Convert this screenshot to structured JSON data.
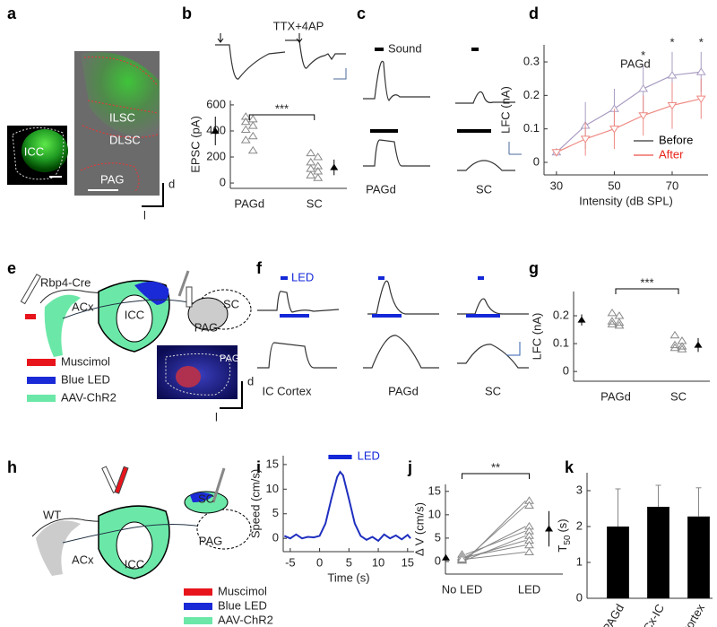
{
  "panel_labels": [
    "a",
    "b",
    "c",
    "d",
    "e",
    "f",
    "g",
    "h",
    "i",
    "j",
    "k"
  ],
  "panel_a": {
    "labels": [
      "ICC",
      "ILSC",
      "DLSC",
      "PAG"
    ],
    "axes": [
      "d",
      "l"
    ]
  },
  "panel_b": {
    "title": "TTX+4AP"
  },
  "panel_c": {
    "stimulus": "Sound",
    "regions": [
      "PAGd",
      "SC"
    ]
  },
  "panel_e": {
    "mouse": "Rbp4-Cre",
    "regions": [
      "ACx",
      "ICC",
      "SC",
      "PAG"
    ],
    "legend": [
      "Muscimol",
      "Blue LED",
      "AAV-ChR2"
    ],
    "legend_colors": [
      "#e8141b",
      "#1a2ad6",
      "#6be8a8"
    ],
    "inset": "PAG",
    "axes": [
      "d",
      "l"
    ]
  },
  "panel_f": {
    "stimulus": "LED",
    "regions": [
      "IC Cortex",
      "PAGd",
      "SC"
    ]
  },
  "panel_h": {
    "mouse": "WT",
    "regions": [
      "ACx",
      "ICC",
      "SC",
      "PAG"
    ],
    "legend": [
      "Muscimol",
      "Blue LED",
      "AAV-ChR2"
    ],
    "legend_colors": [
      "#e8141b",
      "#1a2ad6",
      "#6be8a8"
    ]
  },
  "chart_data": [
    {
      "type": "dots",
      "ylabel": "EPSC (pA)",
      "categories": [
        "PAGd",
        "SC"
      ],
      "points": [
        [
          510,
          490,
          470,
          440,
          410,
          360,
          330,
          250
        ],
        [
          230,
          200,
          160,
          130,
          110,
          90,
          60,
          40
        ]
      ],
      "means": [
        400,
        120
      ],
      "errors": [
        110,
        60
      ],
      "ylim": [
        -41,
        634
      ],
      "yticks": [
        0,
        200,
        400,
        600
      ],
      "significance": "***",
      "color": "#888888"
    },
    {
      "type": "line",
      "title": "PAGd",
      "xlabel": "Intensity (dB SPL)",
      "ylabel": "LFC (nA)",
      "x": [
        30,
        40,
        50,
        60,
        70,
        80
      ],
      "series": [
        {
          "name": "Before",
          "color": "#a99cc2",
          "marker": "triangle-up",
          "values": [
            0.03,
            0.11,
            0.16,
            0.22,
            0.26,
            0.27
          ],
          "errors": [
            0.01,
            0.07,
            0.06,
            0.07,
            0.07,
            0.06
          ]
        },
        {
          "name": "After",
          "color": "#ee8a84",
          "marker": "triangle-down",
          "values": [
            0.03,
            0.07,
            0.1,
            0.14,
            0.17,
            0.19
          ],
          "errors": [
            0.01,
            0.05,
            0.06,
            0.06,
            0.07,
            0.06
          ]
        }
      ],
      "legend_colors": [
        "#000000",
        "#e8231a"
      ],
      "legend": "lower right",
      "xlim": [
        25.7,
        82.4
      ],
      "xticks": [
        30,
        50,
        70
      ],
      "ylim": [
        -0.0375,
        0.351
      ],
      "yticks": [
        0,
        0.1,
        0.2,
        0.3
      ],
      "significance": "*",
      "significance_x": [
        60,
        70,
        80
      ]
    },
    {
      "type": "dots",
      "ylabel": "LFC (nA)",
      "categories": [
        "PAGd",
        "SC"
      ],
      "points": [
        [
          0.21,
          0.2,
          0.18,
          0.175,
          0.17,
          0.165
        ],
        [
          0.13,
          0.11,
          0.095,
          0.09,
          0.085,
          0.08
        ]
      ],
      "means": [
        0.185,
        0.095
      ],
      "errors": [
        0.02,
        0.025
      ],
      "ylim": [
        -0.035,
        0.287
      ],
      "yticks": [
        0,
        0.1,
        0.2
      ],
      "significance": "***",
      "color": "#888888"
    },
    {
      "type": "line",
      "xlabel": "Time (s)",
      "ylabel": "Speed (cm/s)",
      "x": [
        -6,
        -5,
        -4,
        -3,
        -2,
        -1,
        0,
        1,
        2,
        3,
        3.5,
        4,
        5,
        6,
        7,
        8,
        9,
        10,
        11,
        12,
        13,
        14,
        15,
        15.5
      ],
      "values": [
        0.5,
        0,
        0.8,
        0,
        0.3,
        0.2,
        0.5,
        3,
        8,
        12.5,
        13.5,
        12.8,
        8,
        3,
        0.5,
        -0.3,
        0.3,
        -0.5,
        0.8,
        0,
        0.6,
        -0.2,
        0.7,
        0
      ],
      "color": "#1f2fbf",
      "xlim": [
        -6.2,
        16.1
      ],
      "xticks": [
        -5,
        0,
        5,
        10,
        15
      ],
      "ylim": [
        -2.7,
        16.8
      ],
      "yticks": [
        0,
        5,
        10,
        15
      ],
      "stimulus": "LED",
      "stimulus_on": [
        1.5,
        5.5
      ],
      "stimulus_color": "#1428d8"
    },
    {
      "type": "paired",
      "ylabel": "Δ V (cm/s)",
      "categories": [
        "No LED",
        "LED"
      ],
      "points": [
        [
          0.2,
          0.5,
          1,
          1.5,
          0.3,
          0.8,
          1,
          0.5
        ],
        [
          13,
          12,
          7.5,
          6.5,
          5.5,
          4.5,
          3.5,
          2
        ]
      ],
      "means": [
        0.8,
        7
      ],
      "errors": [
        0.3,
        3.8
      ],
      "ylim": [
        -2.7,
        16.5
      ],
      "yticks": [
        0,
        5,
        10,
        15
      ],
      "significance": "**",
      "color": "#888888"
    },
    {
      "type": "bar",
      "ylabel": "T",
      "ylabel_sub": "50",
      "ylabel_unit": "(s)",
      "categories": [
        "PAGd",
        "ACx-IC",
        "IC Cortex"
      ],
      "values": [
        2.0,
        2.55,
        2.28
      ],
      "errors": [
        1.05,
        0.6,
        0.8
      ],
      "ylim": [
        0,
        3.5
      ],
      "yticks": [
        0,
        1,
        2,
        3
      ],
      "color": "#000000"
    }
  ]
}
